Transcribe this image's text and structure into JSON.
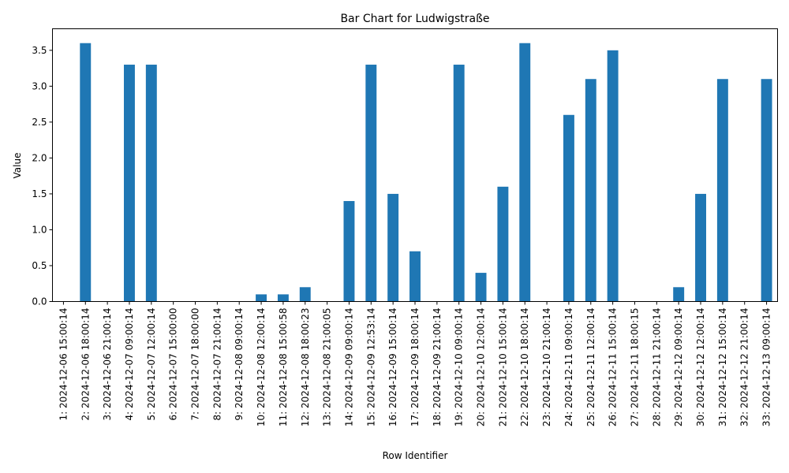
{
  "chart_data": {
    "type": "bar",
    "title": "Bar Chart for Ludwigstraße",
    "xlabel": "Row Identifier",
    "ylabel": "Value",
    "ylim": [
      0,
      3.8
    ],
    "yticks": [
      0.0,
      0.5,
      1.0,
      1.5,
      2.0,
      2.5,
      3.0,
      3.5
    ],
    "ytick_labels": [
      "0.0",
      "0.5",
      "1.0",
      "1.5",
      "2.0",
      "2.5",
      "3.0",
      "3.5"
    ],
    "bar_color": "#1f77b4",
    "grid": false,
    "legend": "none",
    "categories": [
      "1: 2024-12-06 15:00:14",
      "2: 2024-12-06 18:00:14",
      "3: 2024-12-06 21:00:14",
      "4: 2024-12-07 09:00:14",
      "5: 2024-12-07 12:00:14",
      "6: 2024-12-07 15:00:00",
      "7: 2024-12-07 18:00:00",
      "8: 2024-12-07 21:00:14",
      "9: 2024-12-08 09:00:14",
      "10: 2024-12-08 12:00:14",
      "11: 2024-12-08 15:00:58",
      "12: 2024-12-08 18:00:23",
      "13: 2024-12-08 21:00:05",
      "14: 2024-12-09 09:00:14",
      "15: 2024-12-09 12:53:14",
      "16: 2024-12-09 15:00:14",
      "17: 2024-12-09 18:00:14",
      "18: 2024-12-09 21:00:14",
      "19: 2024-12-10 09:00:14",
      "20: 2024-12-10 12:00:14",
      "21: 2024-12-10 15:00:14",
      "22: 2024-12-10 18:00:14",
      "23: 2024-12-10 21:00:14",
      "24: 2024-12-11 09:00:14",
      "25: 2024-12-11 12:00:14",
      "26: 2024-12-11 15:00:14",
      "27: 2024-12-11 18:00:15",
      "28: 2024-12-11 21:00:14",
      "29: 2024-12-12 09:00:14",
      "30: 2024-12-12 12:00:14",
      "31: 2024-12-12 15:00:14",
      "32: 2024-12-12 21:00:14",
      "33: 2024-12-13 09:00:14"
    ],
    "values": [
      0,
      3.6,
      0,
      3.3,
      3.3,
      0,
      0,
      0,
      0,
      0.1,
      0.1,
      0.2,
      0,
      1.4,
      3.3,
      1.5,
      0.7,
      0,
      3.3,
      0.4,
      1.6,
      3.6,
      0,
      2.6,
      3.1,
      3.5,
      0,
      0,
      0.2,
      1.5,
      3.1,
      0,
      3.1
    ]
  }
}
